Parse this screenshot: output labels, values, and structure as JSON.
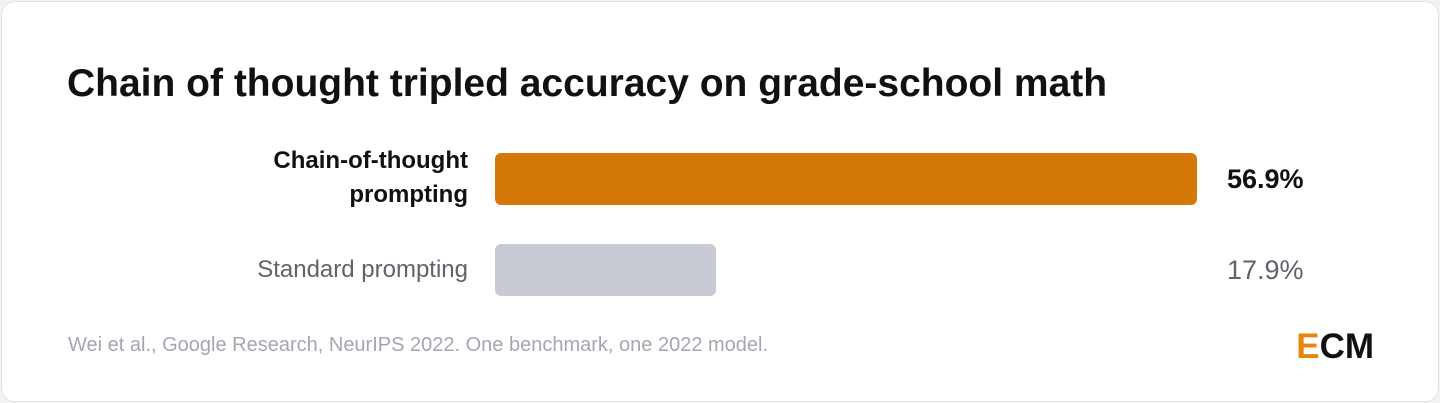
{
  "chart_data": {
    "type": "bar",
    "orientation": "horizontal",
    "title": "Chain of thought tripled accuracy on grade-school math",
    "categories": [
      "Chain-of-thought prompting",
      "Standard prompting"
    ],
    "values": [
      56.9,
      17.9
    ],
    "value_labels": [
      "56.9%",
      "17.9%"
    ],
    "colors": [
      "#d4780a",
      "#c8cbd3"
    ],
    "emphasis": [
      true,
      false
    ],
    "source": "Wei et al., Google Research, NeurIPS 2022. One benchmark, one 2022 model.",
    "logo_parts": [
      "E",
      "CM"
    ]
  }
}
